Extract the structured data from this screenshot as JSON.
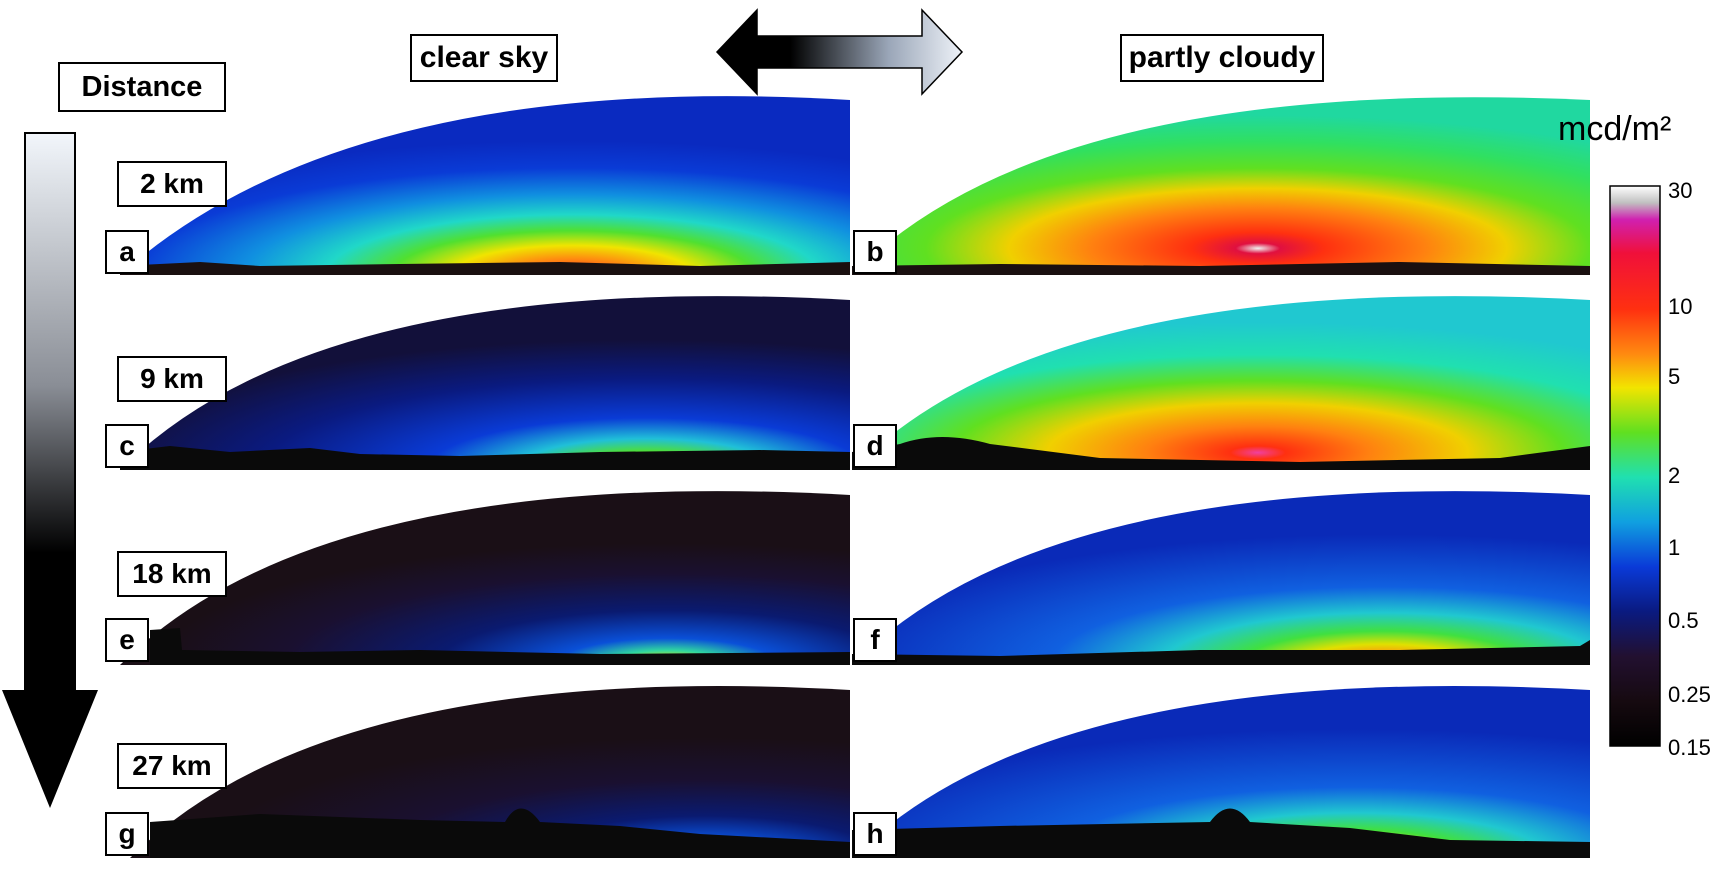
{
  "headers": {
    "clear": "clear sky",
    "cloudy": "partly cloudy",
    "distance": "Distance"
  },
  "rows": [
    {
      "distance": "2 km",
      "left_letter": "a",
      "right_letter": "b"
    },
    {
      "distance": "9 km",
      "left_letter": "c",
      "right_letter": "d"
    },
    {
      "distance": "18 km",
      "left_letter": "e",
      "right_letter": "f"
    },
    {
      "distance": "27 km",
      "left_letter": "g",
      "right_letter": "h"
    }
  ],
  "colorbar": {
    "unit": "mcd/m²",
    "ticks": [
      "30",
      "10",
      "5",
      "2",
      "1",
      "0.5",
      "0.25",
      "0.15"
    ]
  },
  "colors": {
    "sky_dark": "#1a0f16",
    "blue": "#0a3bd6",
    "cyan": "#20d8c8",
    "green": "#3ce020",
    "yellow": "#f0e400",
    "orange": "#ff7a10",
    "red": "#e81020"
  }
}
